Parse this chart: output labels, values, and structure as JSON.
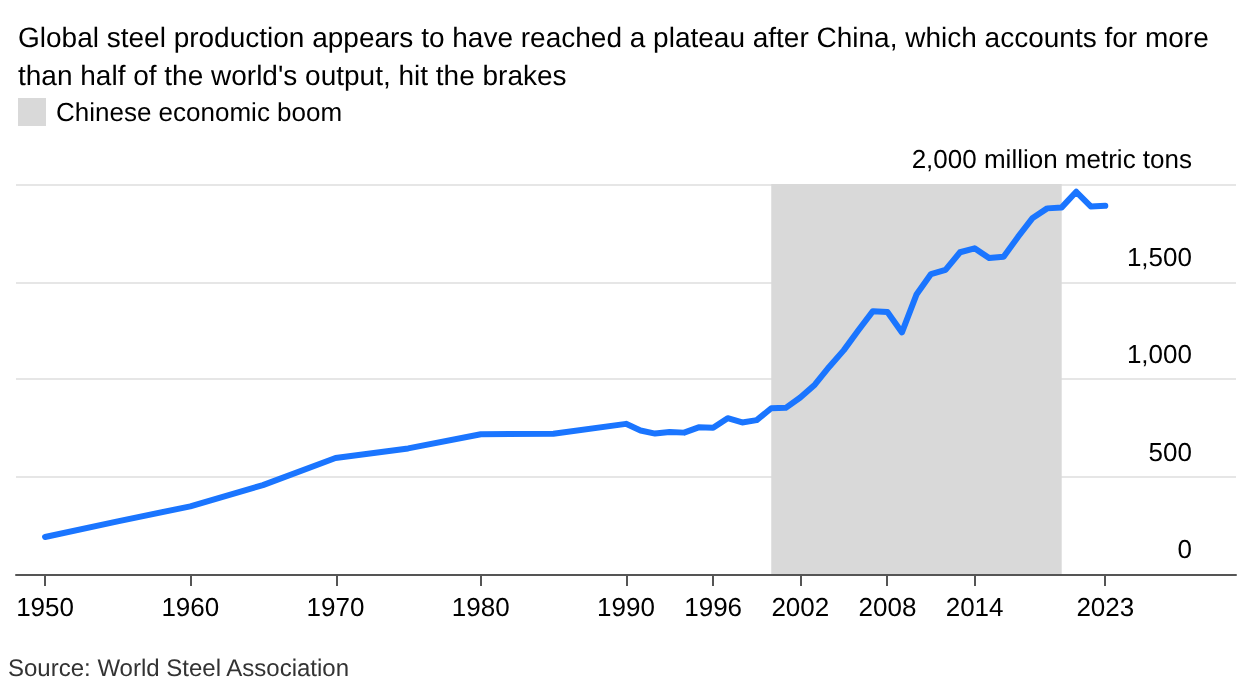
{
  "chart_data": {
    "type": "line",
    "title": "Global steel production appears to have reached a plateau after China, which accounts for more than half of the world's output, hit the brakes",
    "x": [
      1950,
      1955,
      1960,
      1965,
      1970,
      1975,
      1980,
      1985,
      1990,
      1991,
      1992,
      1993,
      1994,
      1995,
      1996,
      1997,
      1998,
      1999,
      2000,
      2001,
      2002,
      2003,
      2004,
      2005,
      2006,
      2007,
      2008,
      2009,
      2010,
      2011,
      2012,
      2013,
      2014,
      2015,
      2016,
      2017,
      2018,
      2019,
      2020,
      2021,
      2022,
      2023
    ],
    "series": [
      {
        "color": "#1a75ff",
        "values": [
          190,
          270,
          347,
          456,
          595,
          644,
          717,
          719,
          770,
          736,
          720,
          728,
          725,
          752,
          750,
          799,
          777,
          789,
          850,
          852,
          905,
          971,
          1063,
          1148,
          1250,
          1348,
          1343,
          1239,
          1433,
          1538,
          1560,
          1650,
          1670,
          1620,
          1627,
          1730,
          1826,
          1875,
          1880,
          1960,
          1885,
          1888
        ]
      }
    ],
    "xlim": [
      1948,
      2032
    ],
    "xticks": [
      1950,
      1960,
      1970,
      1980,
      1990,
      1996,
      2002,
      2008,
      2014,
      2023
    ],
    "ylim": [
      0,
      2000
    ],
    "yticks": [
      0,
      {
        "value": 500,
        "label": "500"
      },
      {
        "value": 1000,
        "label": "1,000"
      },
      {
        "value": 1500,
        "label": "1,500"
      },
      {
        "value": 2000,
        "label": "2,000 million metric tons"
      }
    ],
    "grid": "y",
    "legend": "top left",
    "marker": "none",
    "line_style": "solid",
    "bands": [
      {
        "axis": "x",
        "from": 2000,
        "to": 2020,
        "label": "Chinese economic boom",
        "color": "#d9d9d9"
      }
    ],
    "annotations": [
      "Source: World Steel Association"
    ]
  }
}
